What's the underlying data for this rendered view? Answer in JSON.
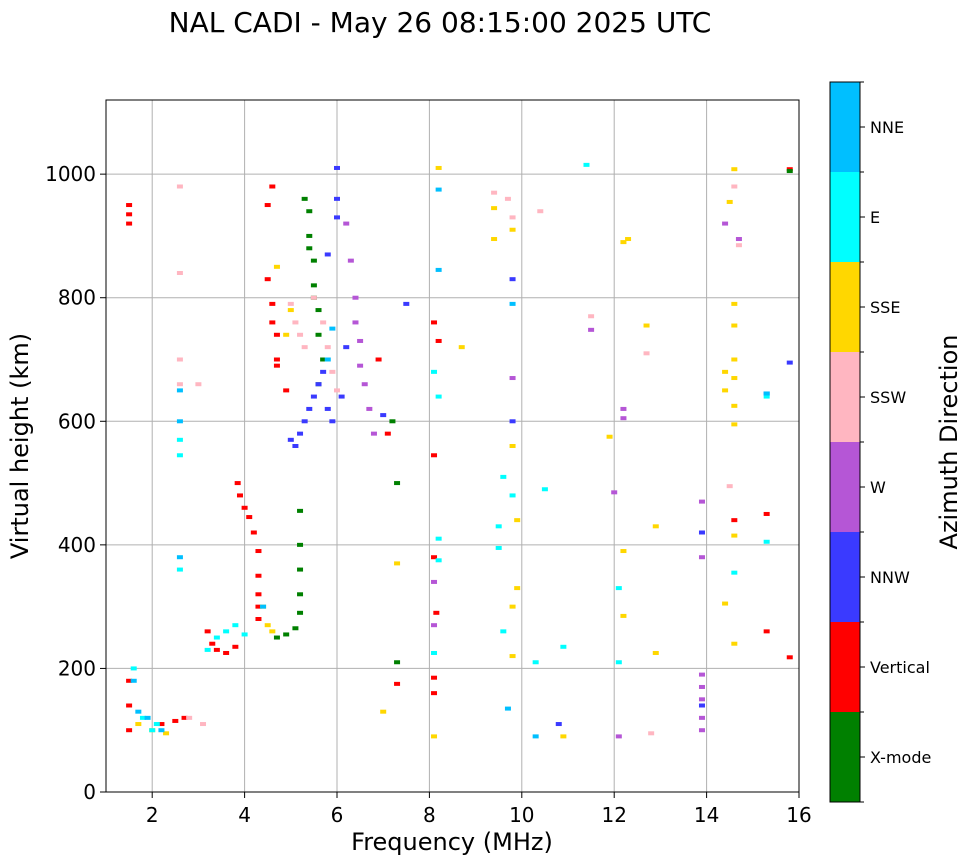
{
  "chart_data": {
    "type": "scatter",
    "title": "NAL CADI - May 26 08:15:00 2025 UTC",
    "xlabel": "Frequency (MHz)",
    "ylabel": "Virtual height (km)",
    "xlim": [
      1,
      16
    ],
    "ylim": [
      0,
      1120
    ],
    "xticks": [
      2,
      4,
      6,
      8,
      10,
      12,
      14,
      16
    ],
    "yticks": [
      0,
      200,
      400,
      600,
      800,
      1000
    ],
    "grid": true,
    "colorbar": {
      "label": "Azimuth Direction",
      "categories": [
        {
          "name": "X-mode",
          "color": "#008000"
        },
        {
          "name": "Vertical",
          "color": "#ff0000"
        },
        {
          "name": "NNW",
          "color": "#3a3aff"
        },
        {
          "name": "W",
          "color": "#b556d6"
        },
        {
          "name": "SSW",
          "color": "#ffb6c1"
        },
        {
          "name": "SSE",
          "color": "#ffd700"
        },
        {
          "name": "E",
          "color": "#00ffff"
        },
        {
          "name": "NNE",
          "color": "#00bfff"
        }
      ]
    },
    "series": [
      {
        "name": "Vertical",
        "points": [
          [
            1.5,
            100
          ],
          [
            1.5,
            140
          ],
          [
            1.5,
            180
          ],
          [
            1.5,
            920
          ],
          [
            1.5,
            935
          ],
          [
            1.5,
            950
          ],
          [
            2.2,
            110
          ],
          [
            2.5,
            115
          ],
          [
            2.7,
            120
          ],
          [
            3.2,
            260
          ],
          [
            3.3,
            240
          ],
          [
            3.4,
            230
          ],
          [
            3.6,
            225
          ],
          [
            3.8,
            235
          ],
          [
            3.85,
            500
          ],
          [
            3.9,
            480
          ],
          [
            4.0,
            460
          ],
          [
            4.1,
            445
          ],
          [
            4.2,
            420
          ],
          [
            4.3,
            390
          ],
          [
            4.3,
            350
          ],
          [
            4.3,
            320
          ],
          [
            4.3,
            300
          ],
          [
            4.3,
            280
          ],
          [
            4.5,
            830
          ],
          [
            4.6,
            790
          ],
          [
            4.6,
            760
          ],
          [
            4.7,
            740
          ],
          [
            4.7,
            700
          ],
          [
            4.7,
            690
          ],
          [
            4.9,
            650
          ],
          [
            4.5,
            950
          ],
          [
            4.6,
            980
          ],
          [
            8.1,
            545
          ],
          [
            8.1,
            760
          ],
          [
            8.2,
            730
          ],
          [
            8.1,
            380
          ],
          [
            8.15,
            290
          ],
          [
            8.1,
            185
          ],
          [
            8.1,
            160
          ],
          [
            14.6,
            440
          ],
          [
            15.3,
            450
          ],
          [
            15.3,
            260
          ],
          [
            15.8,
            218
          ],
          [
            15.8,
            1008
          ],
          [
            6.9,
            700
          ],
          [
            7.1,
            580
          ],
          [
            7.3,
            175
          ]
        ]
      },
      {
        "name": "X-mode",
        "points": [
          [
            4.7,
            250
          ],
          [
            4.9,
            255
          ],
          [
            5.1,
            265
          ],
          [
            5.2,
            290
          ],
          [
            5.2,
            320
          ],
          [
            5.2,
            360
          ],
          [
            5.2,
            400
          ],
          [
            5.2,
            455
          ],
          [
            5.3,
            960
          ],
          [
            5.4,
            940
          ],
          [
            5.4,
            900
          ],
          [
            5.5,
            860
          ],
          [
            5.5,
            820
          ],
          [
            5.6,
            780
          ],
          [
            5.6,
            740
          ],
          [
            5.7,
            700
          ],
          [
            5.6,
            660
          ],
          [
            5.5,
            800
          ],
          [
            5.4,
            880
          ],
          [
            7.2,
            600
          ],
          [
            7.3,
            500
          ],
          [
            7.3,
            210
          ],
          [
            15.8,
            1005
          ]
        ]
      },
      {
        "name": "NNW",
        "points": [
          [
            5.0,
            570
          ],
          [
            5.1,
            560
          ],
          [
            5.2,
            580
          ],
          [
            5.3,
            600
          ],
          [
            5.4,
            620
          ],
          [
            5.5,
            640
          ],
          [
            5.6,
            660
          ],
          [
            5.7,
            680
          ],
          [
            5.8,
            620
          ],
          [
            5.9,
            600
          ],
          [
            6.0,
            1010
          ],
          [
            6.0,
            960
          ],
          [
            6.0,
            930
          ],
          [
            5.8,
            870
          ],
          [
            6.1,
            640
          ],
          [
            6.2,
            720
          ],
          [
            7.0,
            610
          ],
          [
            7.5,
            790
          ],
          [
            9.8,
            830
          ],
          [
            9.8,
            600
          ],
          [
            10.8,
            110
          ],
          [
            13.9,
            420
          ],
          [
            13.9,
            140
          ],
          [
            15.3,
            645
          ],
          [
            15.8,
            695
          ]
        ]
      },
      {
        "name": "W",
        "points": [
          [
            6.2,
            920
          ],
          [
            6.3,
            860
          ],
          [
            6.4,
            800
          ],
          [
            6.4,
            760
          ],
          [
            6.5,
            730
          ],
          [
            6.5,
            690
          ],
          [
            6.6,
            660
          ],
          [
            6.7,
            620
          ],
          [
            6.8,
            580
          ],
          [
            12.2,
            620
          ],
          [
            12.2,
            605
          ],
          [
            12.0,
            485
          ],
          [
            13.9,
            470
          ],
          [
            13.9,
            380
          ],
          [
            13.9,
            190
          ],
          [
            13.9,
            170
          ],
          [
            13.9,
            150
          ],
          [
            13.9,
            120
          ],
          [
            13.9,
            100
          ],
          [
            14.4,
            920
          ],
          [
            14.7,
            895
          ],
          [
            11.5,
            748
          ],
          [
            9.8,
            670
          ],
          [
            8.1,
            340
          ],
          [
            8.1,
            270
          ],
          [
            12.1,
            90
          ]
        ]
      },
      {
        "name": "SSW",
        "points": [
          [
            5.0,
            790
          ],
          [
            5.1,
            760
          ],
          [
            5.2,
            740
          ],
          [
            5.3,
            720
          ],
          [
            5.5,
            800
          ],
          [
            5.7,
            760
          ],
          [
            5.8,
            720
          ],
          [
            5.9,
            680
          ],
          [
            6.0,
            650
          ],
          [
            2.6,
            980
          ],
          [
            2.6,
            840
          ],
          [
            2.6,
            700
          ],
          [
            2.6,
            660
          ],
          [
            3.1,
            110
          ],
          [
            3.0,
            660
          ],
          [
            2.8,
            120
          ],
          [
            9.4,
            970
          ],
          [
            9.7,
            960
          ],
          [
            9.8,
            930
          ],
          [
            10.4,
            940
          ],
          [
            11.5,
            770
          ],
          [
            12.7,
            710
          ],
          [
            12.8,
            95
          ],
          [
            14.5,
            495
          ],
          [
            14.7,
            885
          ],
          [
            14.6,
            980
          ]
        ]
      },
      {
        "name": "SSE",
        "points": [
          [
            1.7,
            110
          ],
          [
            2.0,
            100
          ],
          [
            2.3,
            95
          ],
          [
            4.4,
            300
          ],
          [
            4.5,
            270
          ],
          [
            4.6,
            260
          ],
          [
            4.7,
            850
          ],
          [
            4.9,
            740
          ],
          [
            5.0,
            780
          ],
          [
            8.2,
            1010
          ],
          [
            8.7,
            720
          ],
          [
            9.4,
            945
          ],
          [
            9.4,
            895
          ],
          [
            9.8,
            910
          ],
          [
            9.8,
            560
          ],
          [
            9.8,
            220
          ],
          [
            9.9,
            440
          ],
          [
            9.9,
            330
          ],
          [
            9.8,
            300
          ],
          [
            12.2,
            890
          ],
          [
            12.3,
            895
          ],
          [
            12.7,
            755
          ],
          [
            12.9,
            430
          ],
          [
            12.9,
            225
          ],
          [
            12.2,
            390
          ],
          [
            12.2,
            285
          ],
          [
            11.9,
            575
          ],
          [
            10.9,
            90
          ],
          [
            14.6,
            1008
          ],
          [
            14.5,
            955
          ],
          [
            14.4,
            680
          ],
          [
            14.6,
            670
          ],
          [
            14.6,
            790
          ],
          [
            14.6,
            755
          ],
          [
            14.6,
            700
          ],
          [
            14.6,
            625
          ],
          [
            14.6,
            595
          ],
          [
            14.6,
            415
          ],
          [
            14.6,
            240
          ],
          [
            14.4,
            305
          ],
          [
            14.4,
            650
          ],
          [
            7.3,
            370
          ],
          [
            7.0,
            130
          ],
          [
            8.1,
            90
          ]
        ]
      },
      {
        "name": "E",
        "points": [
          [
            1.6,
            200
          ],
          [
            1.8,
            120
          ],
          [
            2.0,
            100
          ],
          [
            2.1,
            110
          ],
          [
            2.6,
            360
          ],
          [
            2.6,
            570
          ],
          [
            2.6,
            545
          ],
          [
            3.2,
            230
          ],
          [
            3.4,
            250
          ],
          [
            3.6,
            260
          ],
          [
            3.8,
            270
          ],
          [
            4.0,
            255
          ],
          [
            8.2,
            640
          ],
          [
            8.1,
            680
          ],
          [
            8.2,
            410
          ],
          [
            8.2,
            375
          ],
          [
            8.1,
            225
          ],
          [
            9.5,
            395
          ],
          [
            9.6,
            510
          ],
          [
            9.5,
            430
          ],
          [
            9.6,
            260
          ],
          [
            9.8,
            480
          ],
          [
            10.3,
            210
          ],
          [
            10.5,
            490
          ],
          [
            10.9,
            235
          ],
          [
            11.4,
            1015
          ],
          [
            12.1,
            330
          ],
          [
            12.1,
            210
          ],
          [
            14.6,
            355
          ],
          [
            15.3,
            405
          ],
          [
            15.3,
            640
          ]
        ]
      },
      {
        "name": "NNE",
        "points": [
          [
            1.6,
            180
          ],
          [
            1.7,
            130
          ],
          [
            1.9,
            120
          ],
          [
            2.2,
            100
          ],
          [
            2.6,
            380
          ],
          [
            2.6,
            600
          ],
          [
            2.6,
            650
          ],
          [
            4.4,
            300
          ],
          [
            5.8,
            700
          ],
          [
            5.9,
            750
          ],
          [
            8.2,
            975
          ],
          [
            8.2,
            845
          ],
          [
            9.8,
            790
          ],
          [
            9.7,
            135
          ],
          [
            10.3,
            90
          ],
          [
            15.3,
            645
          ]
        ]
      }
    ]
  }
}
